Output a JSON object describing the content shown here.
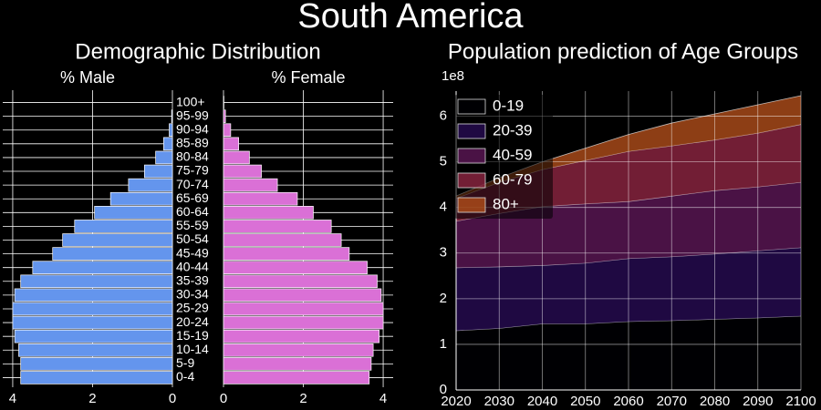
{
  "title": "South America",
  "group_title": "Demographic Distribution",
  "chart_data": [
    {
      "type": "barh",
      "title": "% Male",
      "categories": [
        "0-4",
        "5-9",
        "10-14",
        "15-19",
        "20-24",
        "25-29",
        "30-34",
        "35-39",
        "40-44",
        "45-49",
        "50-54",
        "55-59",
        "60-64",
        "65-69",
        "70-74",
        "75-79",
        "80-84",
        "85-89",
        "90-94",
        "95-99",
        "100+"
      ],
      "values": [
        3.8,
        3.8,
        3.85,
        3.95,
        4.0,
        4.0,
        3.95,
        3.8,
        3.5,
        3.0,
        2.75,
        2.45,
        1.95,
        1.55,
        1.1,
        0.7,
        0.42,
        0.22,
        0.08,
        0.02,
        0.0
      ],
      "color": "#6495ed",
      "xlim": [
        4.25,
        0
      ],
      "xticks": [
        4,
        2,
        0
      ],
      "grid": true
    },
    {
      "type": "barh",
      "title": "% Female",
      "values": [
        3.65,
        3.7,
        3.75,
        3.9,
        4.0,
        4.0,
        3.95,
        3.85,
        3.6,
        3.15,
        2.95,
        2.7,
        2.25,
        1.85,
        1.35,
        0.95,
        0.65,
        0.38,
        0.18,
        0.05,
        0.01
      ],
      "color": "#da70d6",
      "xlim": [
        0,
        4.25
      ],
      "xticks": [
        0,
        2,
        4
      ],
      "grid": true
    },
    {
      "type": "stackplot",
      "title": "Population prediction of Age Groups",
      "y_offset_label": "1e8",
      "x": [
        2020,
        2030,
        2040,
        2050,
        2060,
        2070,
        2080,
        2090,
        2100
      ],
      "xlim": [
        2020,
        2100
      ],
      "xticks": [
        2020,
        2030,
        2040,
        2050,
        2060,
        2070,
        2080,
        2090,
        2100
      ],
      "ylim": [
        0,
        6.55
      ],
      "yticks": [
        0,
        1,
        2,
        3,
        4,
        5,
        6
      ],
      "grid": true,
      "legend": "upper left",
      "series": [
        {
          "name": "0-19",
          "color": "#000004",
          "values": [
            1.3,
            1.35,
            1.45,
            1.45,
            1.5,
            1.52,
            1.55,
            1.58,
            1.62
          ]
        },
        {
          "name": "20-39",
          "color": "#270b52",
          "values": [
            1.38,
            1.35,
            1.28,
            1.33,
            1.38,
            1.4,
            1.43,
            1.47,
            1.5
          ]
        },
        {
          "name": "40-59",
          "color": "#5c1656",
          "values": [
            1.02,
            1.17,
            1.29,
            1.3,
            1.25,
            1.33,
            1.39,
            1.4,
            1.43
          ]
        },
        {
          "name": "60-79",
          "color": "#8e2642",
          "values": [
            0.5,
            0.68,
            0.81,
            0.95,
            1.1,
            1.1,
            1.11,
            1.18,
            1.27
          ]
        },
        {
          "name": "80+",
          "color": "#b04e1a",
          "values": [
            0.05,
            0.1,
            0.17,
            0.27,
            0.37,
            0.5,
            0.57,
            0.62,
            0.63
          ]
        }
      ]
    }
  ]
}
